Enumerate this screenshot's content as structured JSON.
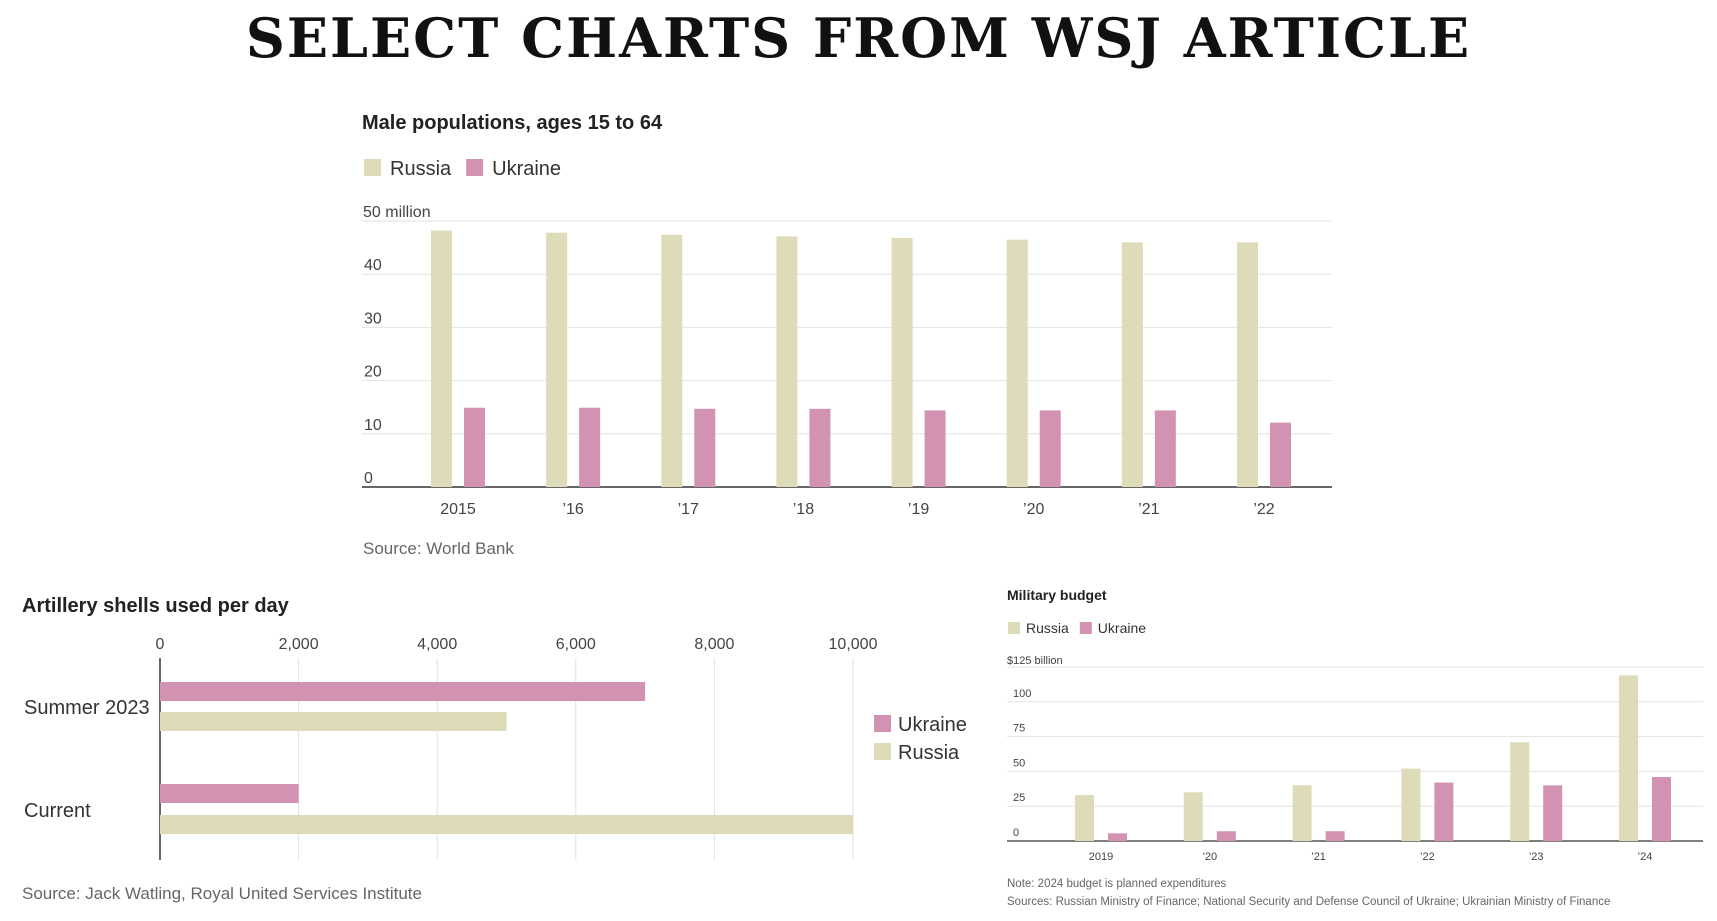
{
  "page_title": "SELECT CHARTS FROM WSJ ARTICLE",
  "colors": {
    "russia": "#dedbb9",
    "ukraine": "#d193b1",
    "grid": "#e2e2e2",
    "axis": "#333333"
  },
  "chart_data": [
    {
      "type": "bar",
      "title": "Male populations, ages 15 to 64",
      "top_tick_label": "50 million",
      "y_tick_labels": [
        "0",
        "10",
        "20",
        "30",
        "40"
      ],
      "categories": [
        "2015",
        "’16",
        "’17",
        "’18",
        "’19",
        "’20",
        "’21",
        "’22"
      ],
      "series": [
        {
          "name": "Russia",
          "values": [
            48.2,
            47.8,
            47.4,
            47.1,
            46.8,
            46.5,
            46.0,
            46.0
          ]
        },
        {
          "name": "Ukraine",
          "values": [
            14.9,
            14.9,
            14.7,
            14.7,
            14.4,
            14.4,
            14.4,
            12.1
          ]
        }
      ],
      "ylim": [
        0,
        50
      ],
      "grid": true,
      "legend_position": "top-left",
      "source": "Source: World Bank"
    },
    {
      "type": "bar",
      "orientation": "horizontal",
      "title": "Artillery shells used per day",
      "x_tick_labels": [
        "0",
        "2,000",
        "4,000",
        "6,000",
        "8,000",
        "10,000"
      ],
      "categories": [
        "Summer 2023",
        "Current"
      ],
      "series": [
        {
          "name": "Ukraine",
          "values": [
            7000,
            2000
          ]
        },
        {
          "name": "Russia",
          "values": [
            5000,
            10000
          ]
        }
      ],
      "xlim": [
        0,
        10000
      ],
      "grid": true,
      "legend_position": "right",
      "source": "Source: Jack Watling, Royal United Services Institute"
    },
    {
      "type": "bar",
      "title": "Military budget",
      "top_tick_label": "$125 billion",
      "y_tick_labels": [
        "0",
        "25",
        "50",
        "75",
        "100"
      ],
      "categories": [
        "2019",
        "’20",
        "’21",
        "’22",
        "’23",
        "’24"
      ],
      "series": [
        {
          "name": "Russia",
          "values": [
            33,
            35,
            40,
            52,
            71,
            119
          ]
        },
        {
          "name": "Ukraine",
          "values": [
            5.5,
            7,
            7,
            42,
            40,
            46
          ]
        }
      ],
      "ylim": [
        0,
        125
      ],
      "grid": true,
      "legend_position": "top-left",
      "note": "Note: 2024 budget is planned expenditures",
      "source": "Sources: Russian Ministry of Finance; National Security and Defense Council of Ukraine; Ukrainian Ministry of Finance"
    }
  ]
}
